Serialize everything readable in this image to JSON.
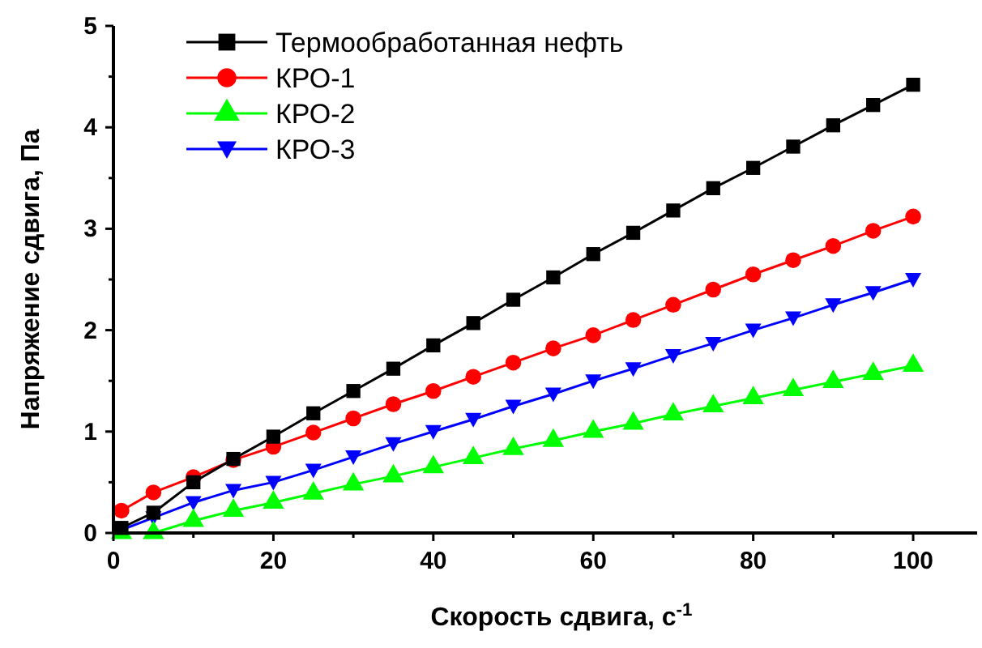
{
  "chart_data": {
    "type": "line",
    "xlabel": "Скорость сдвига, с$^{-1}$",
    "ylabel": "Напряжение сдвига, Па",
    "xlim": [
      0,
      108
    ],
    "ylim": [
      0,
      5
    ],
    "xticks": [
      0,
      {
        "value": 10,
        "label": null
      },
      20,
      {
        "value": 30,
        "label": null
      },
      40,
      {
        "value": 50,
        "label": null
      },
      60,
      {
        "value": 70,
        "label": null
      },
      80,
      {
        "value": 90,
        "label": null
      },
      100
    ],
    "yticks": [
      0,
      {
        "value": 0.5,
        "label": null
      },
      1,
      {
        "value": 1.5,
        "label": null
      },
      2,
      {
        "value": 2.5,
        "label": null
      },
      3,
      {
        "value": 3.5,
        "label": null
      },
      4,
      {
        "value": 4.5,
        "label": null
      },
      5
    ],
    "x": [
      1,
      5,
      10,
      15,
      20,
      25,
      30,
      35,
      40,
      45,
      50,
      55,
      60,
      65,
      70,
      75,
      80,
      85,
      90,
      95,
      100
    ],
    "legend": "top left",
    "grid": false,
    "series": [
      {
        "name": "Термообработанная нефть",
        "color": "#000000",
        "marker": "square",
        "values": [
          0.05,
          0.2,
          0.5,
          0.73,
          0.95,
          1.18,
          1.4,
          1.62,
          1.85,
          2.07,
          2.3,
          2.52,
          2.75,
          2.96,
          3.18,
          3.4,
          3.6,
          3.81,
          4.02,
          4.22,
          4.42
        ]
      },
      {
        "name": "КРО-1",
        "color": "#ff0000",
        "marker": "circle",
        "values": [
          0.22,
          0.4,
          0.55,
          0.72,
          0.85,
          0.99,
          1.13,
          1.27,
          1.4,
          1.54,
          1.68,
          1.82,
          1.95,
          2.1,
          2.25,
          2.4,
          2.55,
          2.69,
          2.83,
          2.98,
          3.12
        ]
      },
      {
        "name": "КРО-2",
        "color": "#00ff00",
        "marker": "triangle",
        "values": [
          0.0,
          0.0,
          0.12,
          0.22,
          0.3,
          0.39,
          0.48,
          0.56,
          0.65,
          0.74,
          0.83,
          0.91,
          1.0,
          1.08,
          1.17,
          1.25,
          1.33,
          1.41,
          1.49,
          1.57,
          1.65
        ]
      },
      {
        "name": "КРО-3",
        "color": "#0000ff",
        "marker": "triangle-down",
        "values": [
          0.03,
          0.15,
          0.3,
          0.42,
          0.5,
          0.62,
          0.75,
          0.88,
          1.0,
          1.12,
          1.25,
          1.37,
          1.5,
          1.62,
          1.75,
          1.87,
          2.0,
          2.12,
          2.25,
          2.37,
          2.5
        ]
      }
    ]
  }
}
